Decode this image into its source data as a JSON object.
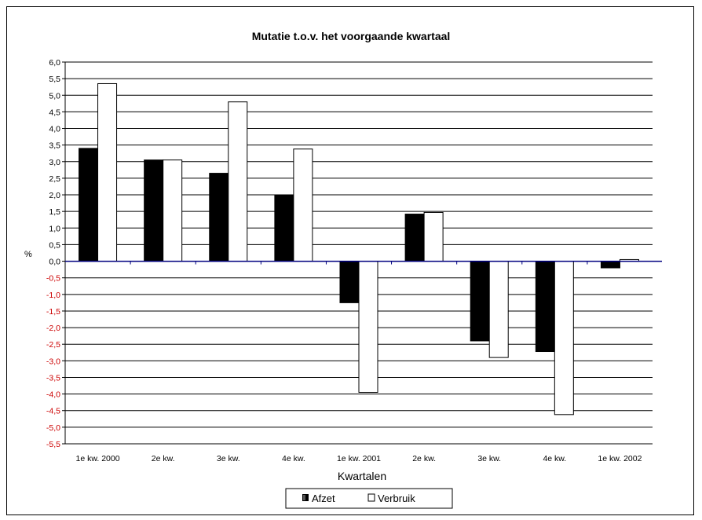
{
  "chart_data": {
    "type": "bar",
    "title": "Mutatie t.o.v. het voorgaande kwartaal",
    "xlabel": "Kwartalen",
    "ylabel": "%",
    "categories": [
      "1e kw. 2000",
      "2e kw.",
      "3e kw.",
      "4e kw.",
      "1e kw. 2001",
      "2e kw.",
      "3e kw.",
      "4e kw.",
      "1e kw. 2002"
    ],
    "series": [
      {
        "name": "Afzet",
        "color": "#000000",
        "values": [
          3.4,
          3.05,
          2.65,
          1.98,
          -1.25,
          1.42,
          -2.4,
          -2.72,
          -0.2
        ]
      },
      {
        "name": "Verbruik",
        "color": "#ffffff",
        "values": [
          5.35,
          3.05,
          4.8,
          3.38,
          -3.95,
          1.47,
          -2.9,
          -4.62,
          0.05
        ]
      }
    ],
    "ylim": [
      -5.5,
      6.0
    ],
    "ytick_step": 0.5,
    "yticks": [
      "6,0",
      "5,5",
      "5,0",
      "4,5",
      "4,0",
      "3,5",
      "3,0",
      "2,5",
      "2,0",
      "1,5",
      "1,0",
      "0,5",
      "0,0",
      "-0,5",
      "-1,0",
      "-1,5",
      "-2,0",
      "-2,5",
      "-3,0",
      "-3,5",
      "-4,0",
      "-4,5",
      "-5,0",
      "-5,5"
    ],
    "negative_tick_color": "#cc0000",
    "positive_tick_color": "#000000",
    "zero_line_color": "#000080",
    "grid": true,
    "legend_position": "bottom"
  }
}
